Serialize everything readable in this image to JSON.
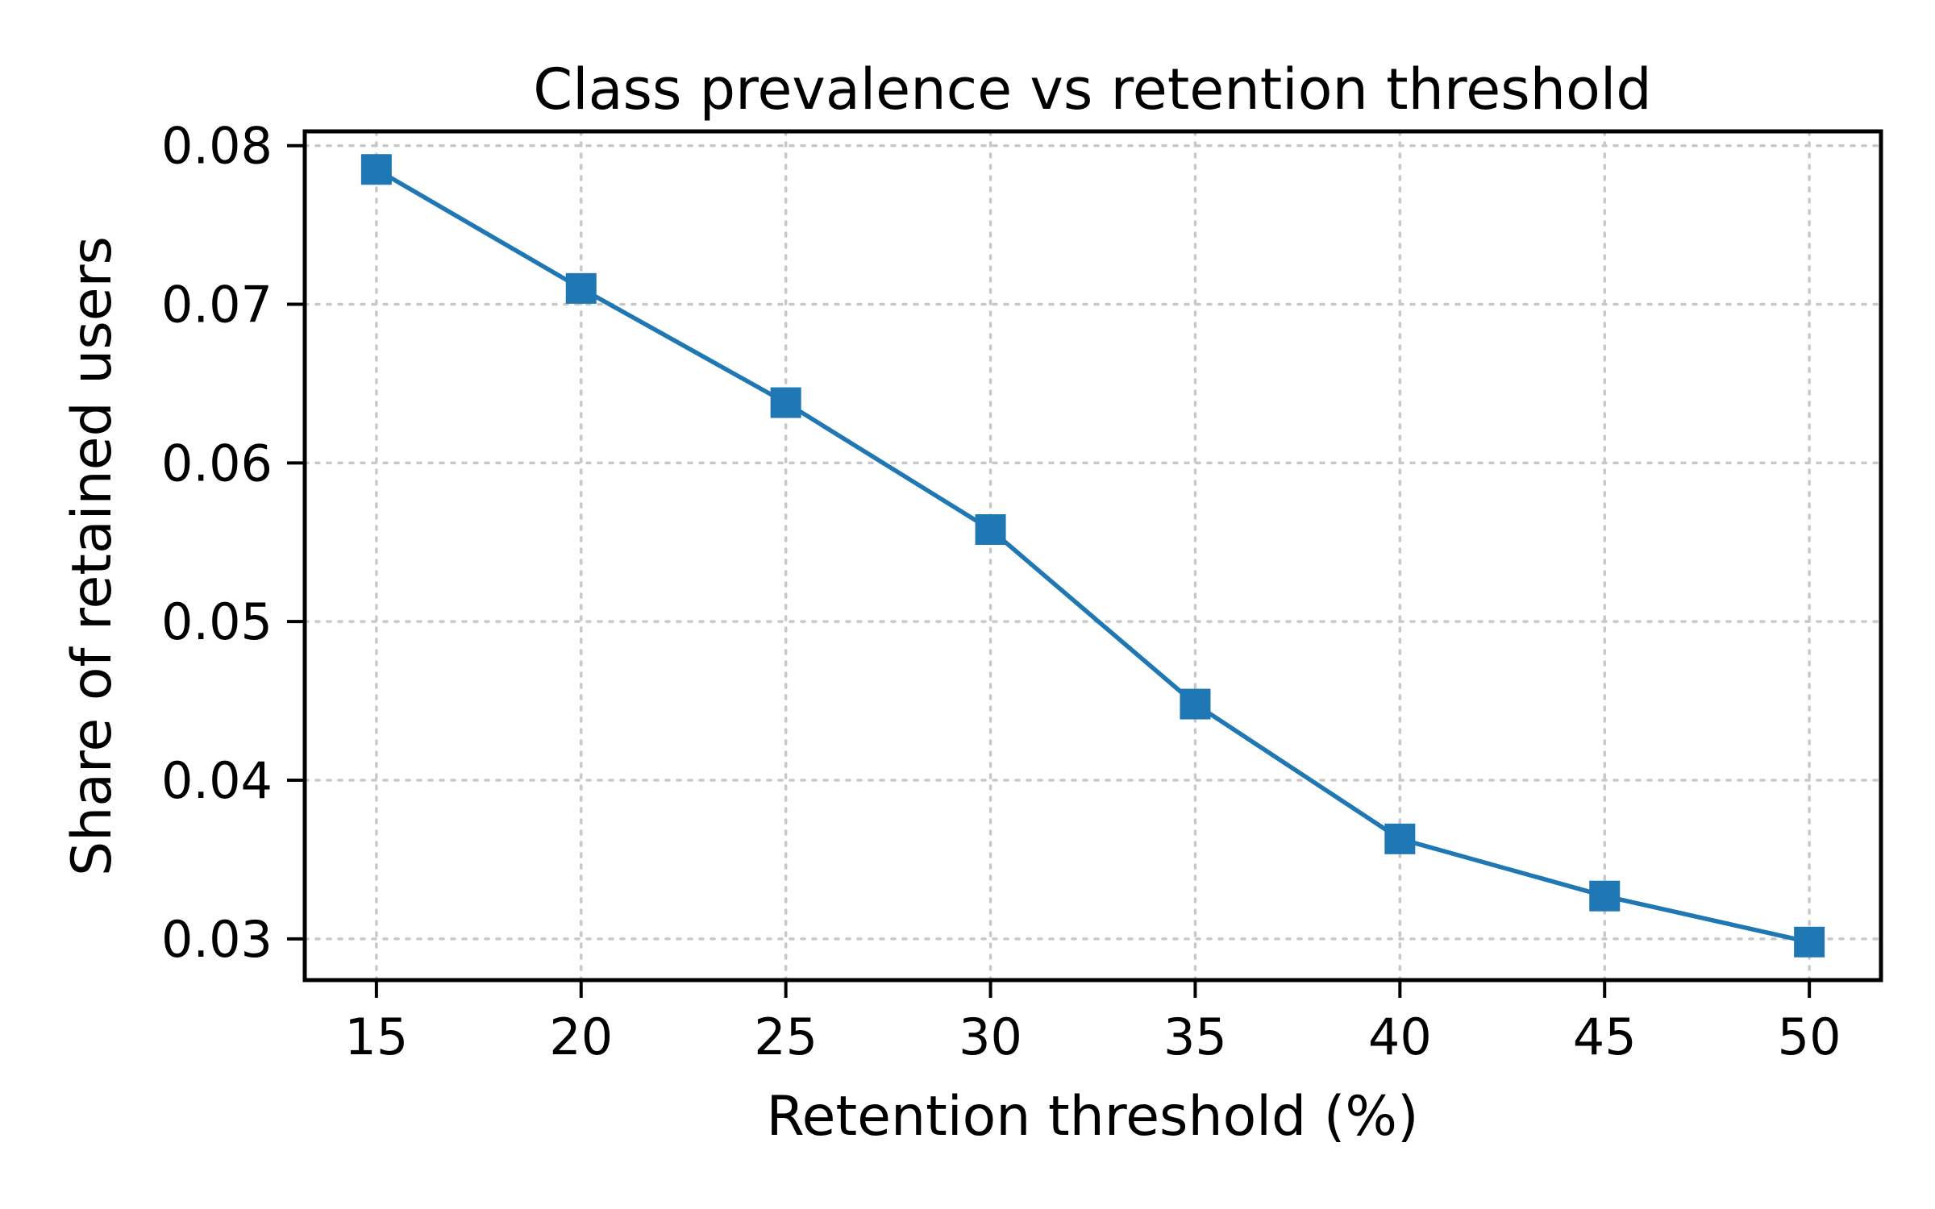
{
  "chart_data": {
    "type": "line",
    "title": "Class prevalence vs retention threshold",
    "xlabel": "Retention threshold (%)",
    "ylabel": "Share of retained users",
    "x": [
      15,
      20,
      25,
      30,
      35,
      40,
      45,
      50
    ],
    "x_ticks": [
      "15",
      "20",
      "25",
      "30",
      "35",
      "40",
      "45",
      "50"
    ],
    "y_ticks": [
      "0.03",
      "0.04",
      "0.05",
      "0.06",
      "0.07",
      "0.08"
    ],
    "y_tick_values": [
      0.03,
      0.04,
      0.05,
      0.06,
      0.07,
      0.08
    ],
    "xlim": [
      13.25,
      51.75
    ],
    "ylim": [
      0.0274,
      0.0809
    ],
    "grid": true,
    "series": [
      {
        "values": [
          0.0785,
          0.071,
          0.0638,
          0.0558,
          0.0448,
          0.0363,
          0.0327,
          0.0298
        ],
        "color": "#1f77b4",
        "marker": "square"
      }
    ]
  }
}
